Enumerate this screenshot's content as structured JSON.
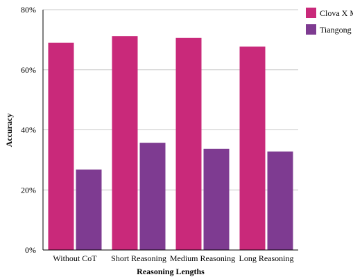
{
  "chart_data": {
    "type": "bar",
    "title": "",
    "xlabel": "Reasoning Lengths",
    "ylabel": "Accuracy",
    "categories": [
      "Without CoT",
      "Short Reasoning",
      "Medium Reasoning",
      "Long Reasoning"
    ],
    "series": [
      {
        "name": "Clova X M",
        "color": "#c9297a",
        "values": [
          69.0,
          71.2,
          70.6,
          67.7
        ]
      },
      {
        "name": "Tiangong",
        "color": "#7e3b91",
        "values": [
          26.8,
          35.7,
          33.7,
          32.8
        ]
      }
    ],
    "ylim": [
      0,
      80
    ],
    "yticks": [
      0,
      20,
      40,
      60,
      80
    ],
    "ytick_labels": [
      "0%",
      "20%",
      "40%",
      "60%",
      "80%"
    ],
    "grid": true,
    "legend_position": "top-right"
  }
}
